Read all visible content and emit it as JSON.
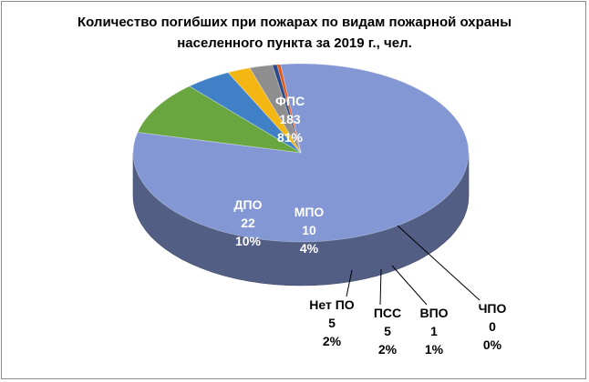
{
  "chart_data": {
    "type": "pie",
    "title_line1": "Количество погибших при пожарах по видам пожарной охраны",
    "title_line2": "населенного пункта за 2019 г., чел.",
    "slices": [
      {
        "label": "ФПС",
        "value": 183,
        "percent": "81%",
        "color": "#8497d5"
      },
      {
        "label": "ДПО",
        "value": 22,
        "percent": "10%",
        "color": "#6aa640"
      },
      {
        "label": "МПО",
        "value": 10,
        "percent": "4%",
        "color": "#3f80c6"
      },
      {
        "label": "Нет ПО",
        "value": 5,
        "percent": "2%",
        "color": "#f3b612"
      },
      {
        "label": "ПСС",
        "value": 5,
        "percent": "2%",
        "color": "#8e8e8e"
      },
      {
        "label": "ВПО",
        "value": 1,
        "percent": "1%",
        "color": "#284a8a"
      },
      {
        "label": "ЧПО",
        "value": 0,
        "percent": "0%",
        "color": "#e05a1c"
      }
    ]
  }
}
